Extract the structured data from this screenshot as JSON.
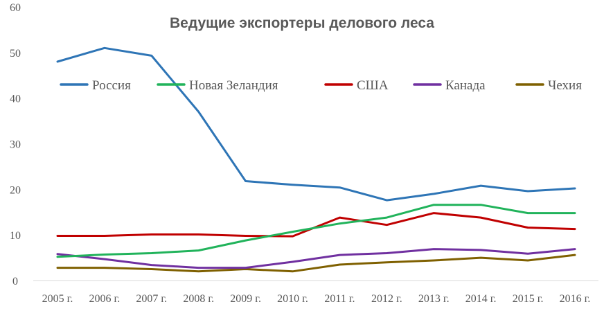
{
  "chart_data": {
    "type": "line",
    "title": "Ведущие экспортеры делового леса",
    "xlabel": "",
    "ylabel": "",
    "categories": [
      "2005 г.",
      "2006 г.",
      "2007 г.",
      "2008 г.",
      "2009 г.",
      "2010 г.",
      "2011 г.",
      "2012 г.",
      "2013 г.",
      "2014 г.",
      "2015 г.",
      "2016 г."
    ],
    "ylim": [
      0,
      60
    ],
    "yticks": [
      "0",
      "10",
      "20",
      "30",
      "40",
      "50",
      "60"
    ],
    "grid": false,
    "legend_position": "top",
    "series": [
      {
        "name": "Россия",
        "color": "#2E75B6",
        "values": [
          48,
          51,
          49.3,
          37,
          21.8,
          21,
          20.4,
          17.6,
          19,
          20.8,
          19.6,
          20.2
        ]
      },
      {
        "name": "Новая Зеландия",
        "color": "#21B35B",
        "values": [
          5.2,
          5.7,
          6,
          6.6,
          8.8,
          10.7,
          12.5,
          13.8,
          16.6,
          16.6,
          14.8,
          14.8
        ]
      },
      {
        "name": "США",
        "color": "#C00000",
        "values": [
          9.8,
          9.8,
          10.1,
          10.1,
          9.8,
          9.7,
          13.8,
          12.2,
          14.8,
          13.8,
          11.6,
          11.3
        ]
      },
      {
        "name": "Канада",
        "color": "#7030A0",
        "values": [
          5.8,
          4.7,
          3.4,
          2.8,
          2.8,
          4.1,
          5.6,
          6,
          6.9,
          6.7,
          5.9,
          6.9
        ]
      },
      {
        "name": "Чехия",
        "color": "#7F6000",
        "values": [
          2.8,
          2.8,
          2.5,
          2,
          2.5,
          2,
          3.5,
          4,
          4.4,
          5,
          4.4,
          5.6
        ]
      }
    ]
  }
}
